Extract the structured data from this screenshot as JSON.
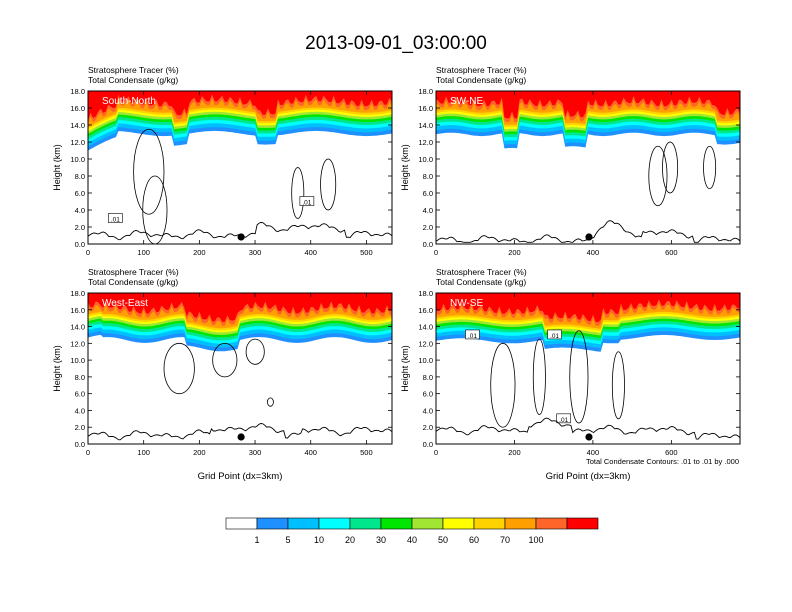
{
  "title": "2013-09-01_03:00:00",
  "colors": {
    "levels": [
      "#ffffff",
      "#1e90ff",
      "#00bfff",
      "#00ffff",
      "#00e68c",
      "#00e600",
      "#a0e632",
      "#ffff00",
      "#ffd200",
      "#ffa000",
      "#ff6428",
      "#ff0000"
    ],
    "contour": "#000000",
    "terrain": "#000000"
  },
  "colorbar": {
    "labels": [
      "1",
      "5",
      "10",
      "20",
      "30",
      "40",
      "50",
      "60",
      "70",
      "100"
    ]
  },
  "footnote": "Total Condensate Contours: .01 to .01 by .000",
  "chart_data": [
    {
      "type": "heatmap",
      "name": "panel-south-north",
      "label": "South-North",
      "line1": "Stratosphere Tracer   (%)",
      "line2": "Total Condensate   (g/kg)",
      "ylabel": "Height (km)",
      "xlabel": "",
      "xlim": [
        0,
        546
      ],
      "ylim": [
        0,
        18
      ],
      "xticks": [
        "0",
        "100",
        "200",
        "300",
        "400",
        "500"
      ],
      "yticks": [
        "0.0",
        "2.0",
        "4.0",
        "6.0",
        "8.0",
        "10.0",
        "12.0",
        "14.0",
        "16.0",
        "18.0"
      ],
      "marker_x": 275,
      "contour_labels": [
        ".01",
        ".01"
      ]
    },
    {
      "type": "heatmap",
      "name": "panel-sw-ne",
      "label": "SW-NE",
      "line1": "Stratosphere Tracer   (%)",
      "line2": "Total Condensate   (g/kg)",
      "ylabel": "Height (km)",
      "xlabel": "",
      "xlim": [
        0,
        775
      ],
      "ylim": [
        0,
        18
      ],
      "xticks": [
        "0",
        "200",
        "400",
        "600"
      ],
      "yticks": [
        "0.0",
        "2.0",
        "4.0",
        "6.0",
        "8.0",
        "10.0",
        "12.0",
        "14.0",
        "16.0",
        "18.0"
      ],
      "marker_x": 390,
      "contour_labels": []
    },
    {
      "type": "heatmap",
      "name": "panel-west-east",
      "label": "West-East",
      "line1": "Stratosphere Tracer   (%)",
      "line2": "Total Condensate   (g/kg)",
      "ylabel": "Height (km)",
      "xlabel": "Grid Point (dx=3km)",
      "xlim": [
        0,
        546
      ],
      "ylim": [
        0,
        18
      ],
      "xticks": [
        "0",
        "100",
        "200",
        "300",
        "400",
        "500"
      ],
      "yticks": [
        "0.0",
        "2.0",
        "4.0",
        "6.0",
        "8.0",
        "10.0",
        "12.0",
        "14.0",
        "16.0",
        "18.0"
      ],
      "marker_x": 275,
      "contour_labels": []
    },
    {
      "type": "heatmap",
      "name": "panel-nw-se",
      "label": "NW-SE",
      "line1": "Stratosphere Tracer   (%)",
      "line2": "Total Condensate   (g/kg)",
      "ylabel": "Height (km)",
      "xlabel": "Grid Point (dx=3km)",
      "xlim": [
        0,
        775
      ],
      "ylim": [
        0,
        18
      ],
      "xticks": [
        "0",
        "200",
        "400",
        "600"
      ],
      "yticks": [
        "0.0",
        "2.0",
        "4.0",
        "6.0",
        "8.0",
        "10.0",
        "12.0",
        "14.0",
        "16.0",
        "18.0"
      ],
      "marker_x": 390,
      "contour_labels": [
        ".01",
        ".01",
        ".01"
      ]
    }
  ]
}
